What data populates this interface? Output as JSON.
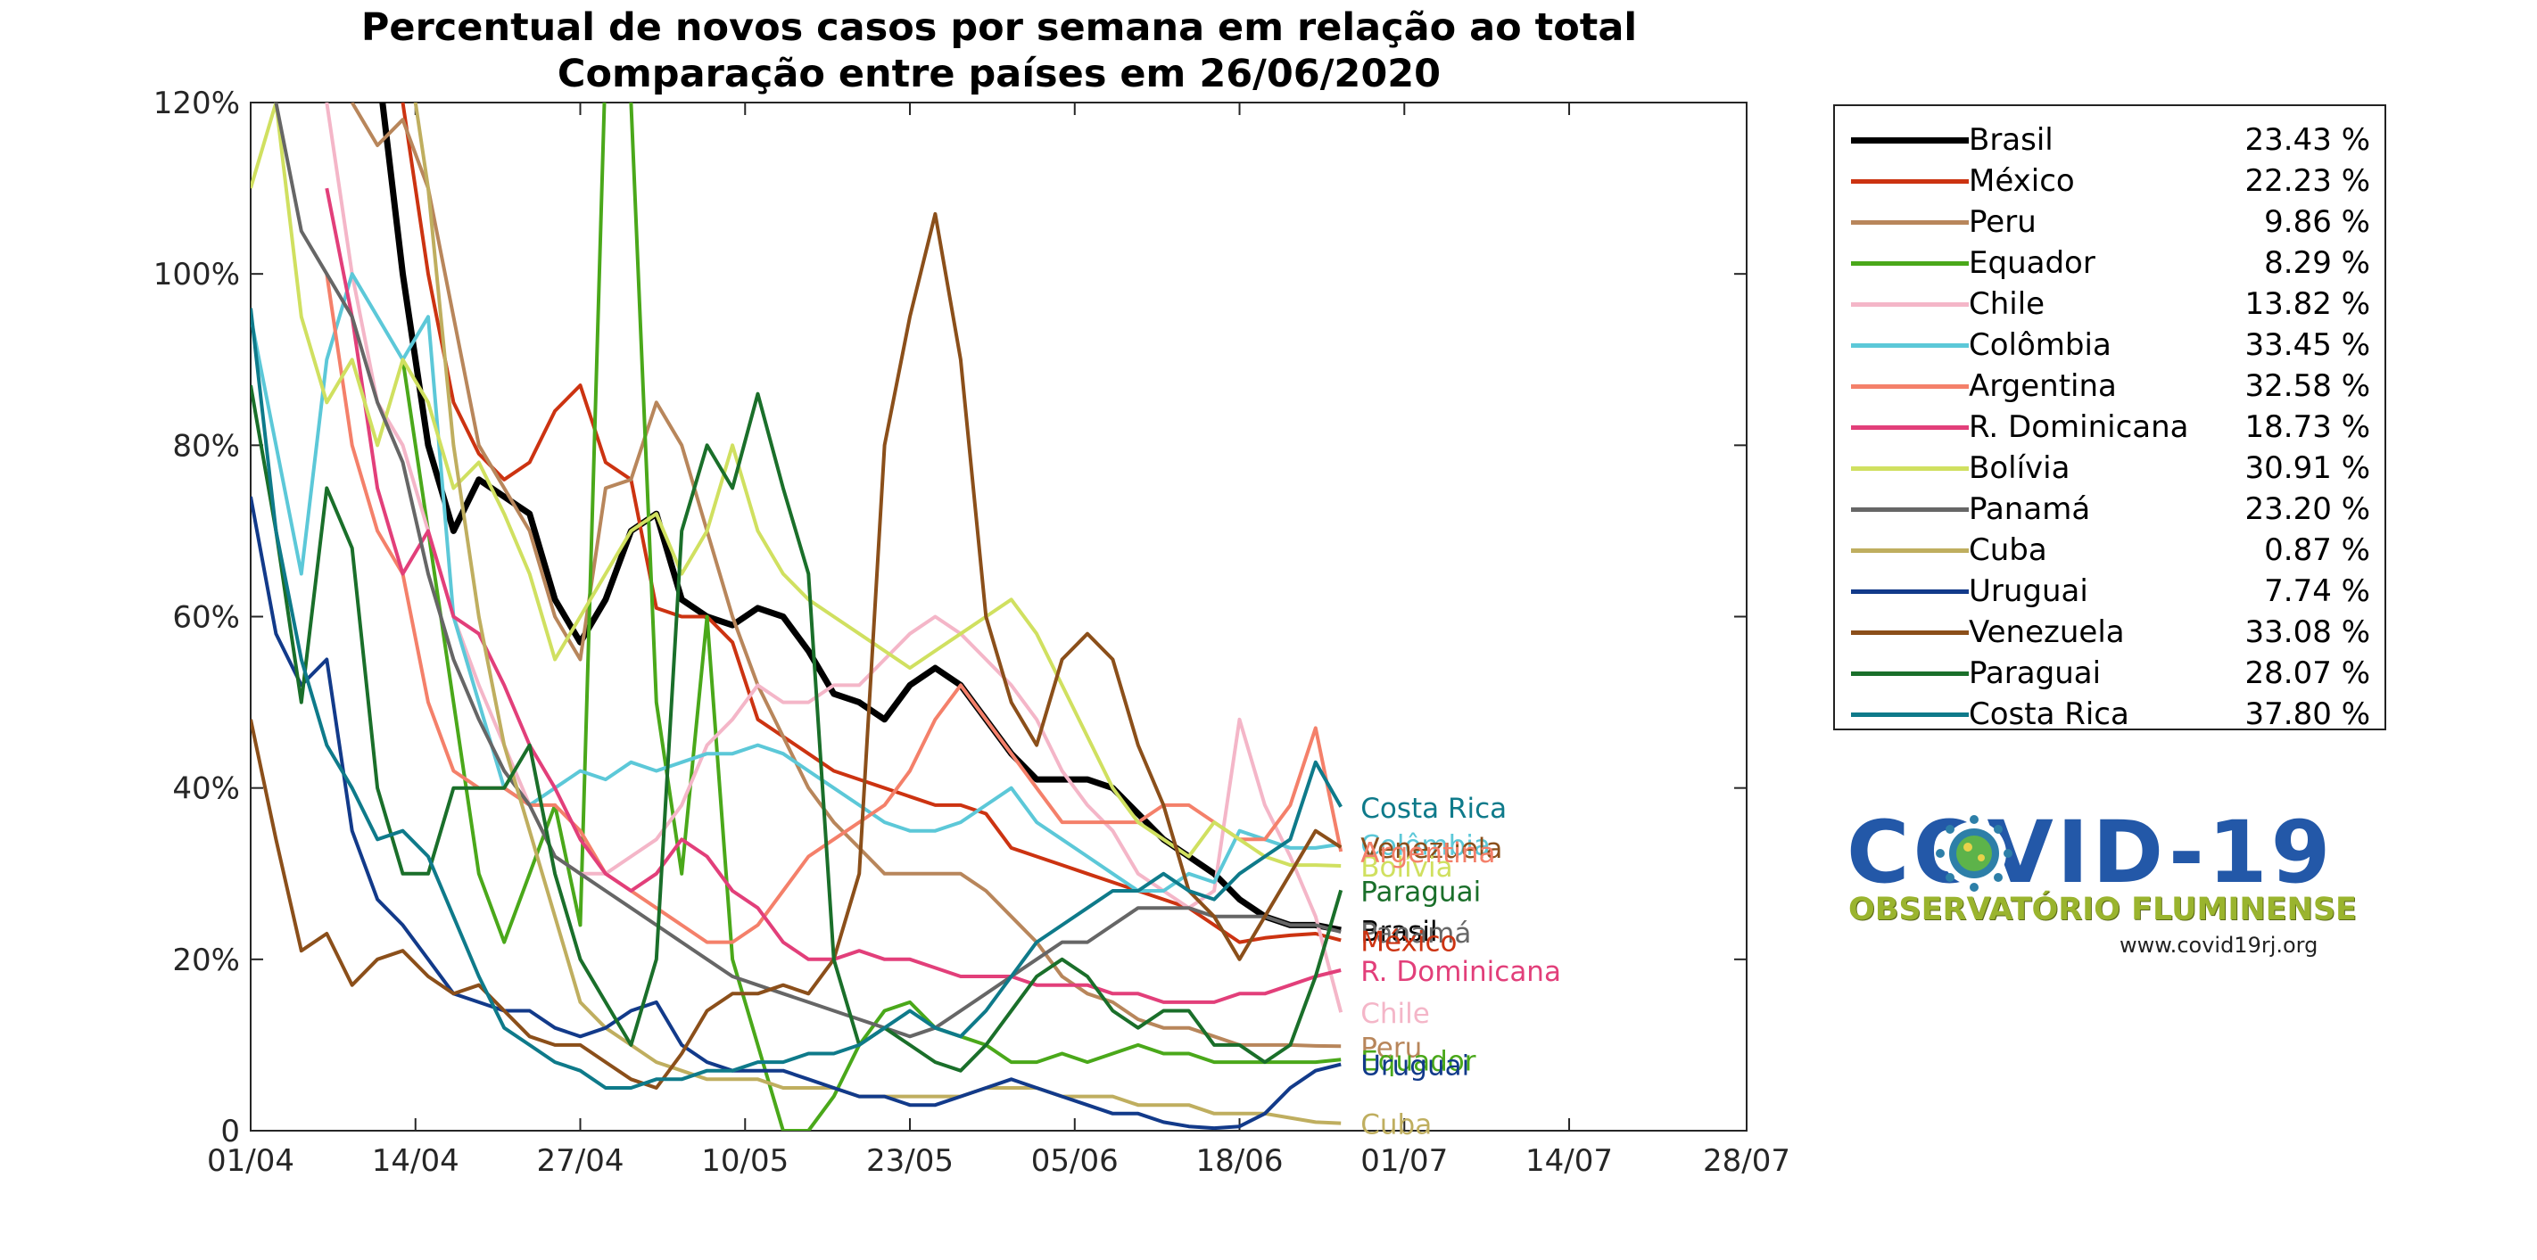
{
  "title_line1": "Percentual de novos casos por semana em relação ao total",
  "title_line2": "Comparação entre países em 26/06/2020",
  "logo": {
    "title": "COVID-19",
    "subtitle": "OBSERVATÓRIO FLUMINENSE",
    "url": "www.covid19rj.org",
    "icon": "coronavirus-icon"
  },
  "chart_data": {
    "type": "line",
    "title": "Percentual de novos casos por semana em relação ao total",
    "subtitle": "Comparação entre países em 26/06/2020",
    "xlabel": "",
    "ylabel": "",
    "x": [
      "01/04",
      "03/04",
      "05/04",
      "07/04",
      "09/04",
      "11/04",
      "13/04",
      "15/04",
      "17/04",
      "19/04",
      "21/04",
      "23/04",
      "25/04",
      "27/04",
      "29/04",
      "01/05",
      "03/05",
      "05/05",
      "07/05",
      "09/05",
      "11/05",
      "13/05",
      "15/05",
      "17/05",
      "19/05",
      "21/05",
      "23/05",
      "25/05",
      "27/05",
      "29/05",
      "31/05",
      "02/06",
      "04/06",
      "06/06",
      "08/06",
      "10/06",
      "12/06",
      "14/06",
      "16/06",
      "18/06",
      "20/06",
      "22/06",
      "24/06",
      "26/06"
    ],
    "x_ticks": [
      "01/04",
      "14/04",
      "27/04",
      "10/05",
      "23/05",
      "05/06",
      "18/06",
      "01/07",
      "14/07",
      "28/07"
    ],
    "x_range": [
      "01/04",
      "28/07"
    ],
    "y_ticks": [
      "0",
      "20%",
      "40%",
      "60%",
      "80%",
      "100%",
      "120%"
    ],
    "ylim": [
      0,
      120
    ],
    "y_unit": "%",
    "grid": false,
    "legend_position": "outside-right",
    "series": [
      {
        "name": "Brasil",
        "color": "#000000",
        "final": "23.43 %",
        "values": [
          null,
          null,
          null,
          null,
          null,
          125,
          100,
          80,
          70,
          76,
          74,
          72,
          62,
          57,
          62,
          70,
          72,
          62,
          60,
          59,
          61,
          60,
          56,
          51,
          50,
          48,
          52,
          54,
          52,
          48,
          44,
          41,
          41,
          41,
          40,
          37,
          34,
          32,
          30,
          27,
          25,
          24,
          24,
          23.43
        ]
      },
      {
        "name": "México",
        "color": "#cc3311",
        "final": "22.23 %",
        "values": [
          null,
          null,
          null,
          null,
          null,
          null,
          120,
          100,
          85,
          79,
          76,
          78,
          84,
          87,
          78,
          76,
          61,
          60,
          60,
          57,
          48,
          46,
          44,
          42,
          41,
          40,
          39,
          38,
          38,
          37,
          33,
          32,
          31,
          30,
          29,
          28,
          27,
          26,
          24,
          22,
          22.5,
          22.8,
          23,
          22.23
        ]
      },
      {
        "name": "Peru",
        "color": "#b8865b",
        "final": "9.86 %",
        "values": [
          null,
          null,
          null,
          null,
          120,
          115,
          118,
          110,
          95,
          80,
          75,
          70,
          60,
          55,
          75,
          76,
          85,
          80,
          70,
          60,
          52,
          46,
          40,
          36,
          33,
          30,
          30,
          30,
          30,
          28,
          25,
          22,
          18,
          16,
          15,
          13,
          12,
          12,
          11,
          10,
          10,
          10,
          9.9,
          9.86
        ]
      },
      {
        "name": "Equador",
        "color": "#4aa81a",
        "final": "8.29 %",
        "values": [
          null,
          null,
          null,
          null,
          null,
          null,
          90,
          70,
          50,
          30,
          22,
          30,
          38,
          24,
          125,
          120,
          50,
          30,
          60,
          20,
          10,
          0,
          0,
          4,
          10,
          14,
          15,
          12,
          11,
          10,
          8,
          8,
          9,
          8,
          9,
          10,
          9,
          9,
          8,
          8,
          8,
          8,
          8,
          8.29
        ]
      },
      {
        "name": "Chile",
        "color": "#f4b6c8",
        "final": "13.82 %",
        "values": [
          null,
          null,
          null,
          120,
          100,
          85,
          80,
          70,
          60,
          52,
          45,
          38,
          32,
          30,
          30,
          32,
          34,
          38,
          45,
          48,
          52,
          50,
          50,
          52,
          52,
          55,
          58,
          60,
          58,
          55,
          52,
          48,
          42,
          38,
          35,
          30,
          28,
          26,
          28,
          48,
          38,
          32,
          25,
          13.82
        ]
      },
      {
        "name": "Colômbia",
        "color": "#5cc8d8",
        "final": "33.45 %",
        "values": [
          95,
          80,
          65,
          90,
          100,
          95,
          90,
          95,
          60,
          50,
          40,
          38,
          40,
          42,
          41,
          43,
          42,
          43,
          44,
          44,
          45,
          44,
          42,
          40,
          38,
          36,
          35,
          35,
          36,
          38,
          40,
          36,
          34,
          32,
          30,
          28,
          28,
          30,
          29,
          35,
          34,
          33,
          33,
          33.45
        ]
      },
      {
        "name": "Argentina",
        "color": "#f4806a",
        "final": "32.58 %",
        "values": [
          null,
          null,
          null,
          100,
          80,
          70,
          65,
          50,
          42,
          40,
          40,
          38,
          38,
          35,
          30,
          28,
          26,
          24,
          22,
          22,
          24,
          28,
          32,
          34,
          36,
          38,
          42,
          48,
          52,
          48,
          44,
          40,
          36,
          36,
          36,
          36,
          38,
          38,
          36,
          34,
          34,
          38,
          47,
          32.58
        ]
      },
      {
        "name": "R. Dominicana",
        "color": "#e23f7a",
        "final": "18.73 %",
        "values": [
          null,
          null,
          null,
          110,
          95,
          75,
          65,
          70,
          60,
          58,
          52,
          45,
          40,
          34,
          30,
          28,
          30,
          34,
          32,
          28,
          26,
          22,
          20,
          20,
          21,
          20,
          20,
          19,
          18,
          18,
          18,
          17,
          17,
          17,
          16,
          16,
          15,
          15,
          15,
          16,
          16,
          17,
          18,
          18.73
        ]
      },
      {
        "name": "Bolívia",
        "color": "#d0e060",
        "final": "30.91 %",
        "values": [
          110,
          120,
          95,
          85,
          90,
          80,
          90,
          85,
          75,
          78,
          72,
          65,
          55,
          60,
          65,
          70,
          72,
          65,
          70,
          80,
          70,
          65,
          62,
          60,
          58,
          56,
          54,
          56,
          58,
          60,
          62,
          58,
          52,
          46,
          40,
          36,
          34,
          32,
          36,
          34,
          32,
          31,
          31,
          30.91
        ]
      },
      {
        "name": "Panamá",
        "color": "#666666",
        "final": "23.20 %",
        "values": [
          125,
          120,
          105,
          100,
          95,
          85,
          78,
          65,
          55,
          48,
          42,
          38,
          32,
          30,
          28,
          26,
          24,
          22,
          20,
          18,
          17,
          16,
          15,
          14,
          13,
          12,
          11,
          12,
          14,
          16,
          18,
          20,
          22,
          22,
          24,
          26,
          26,
          26,
          25,
          25,
          25,
          24,
          24,
          23.2
        ]
      },
      {
        "name": "Cuba",
        "color": "#bfae5f",
        "final": "0.87 %",
        "values": [
          null,
          null,
          null,
          null,
          null,
          null,
          130,
          110,
          80,
          60,
          45,
          35,
          25,
          15,
          12,
          10,
          8,
          7,
          6,
          6,
          6,
          5,
          5,
          5,
          4,
          4,
          4,
          4,
          4,
          5,
          5,
          5,
          4,
          4,
          4,
          3,
          3,
          3,
          2,
          2,
          2,
          1.5,
          1,
          0.87
        ]
      },
      {
        "name": "Uruguai",
        "color": "#123a8a",
        "final": "7.74 %",
        "values": [
          74,
          58,
          52,
          55,
          35,
          27,
          24,
          20,
          16,
          15,
          14,
          14,
          12,
          11,
          12,
          14,
          15,
          10,
          8,
          7,
          7,
          7,
          6,
          5,
          4,
          4,
          3,
          3,
          4,
          5,
          6,
          5,
          4,
          3,
          2,
          2,
          1,
          0.5,
          0.3,
          0.5,
          2,
          5,
          7,
          7.74
        ]
      },
      {
        "name": "Venezuela",
        "color": "#8b4f1a",
        "final": "33.08 %",
        "values": [
          48,
          34,
          21,
          23,
          17,
          20,
          21,
          18,
          16,
          17,
          14,
          11,
          10,
          10,
          8,
          6,
          5,
          9,
          14,
          16,
          16,
          17,
          16,
          20,
          30,
          80,
          95,
          107,
          90,
          60,
          50,
          45,
          55,
          58,
          55,
          45,
          38,
          28,
          25,
          20,
          25,
          30,
          35,
          33.08
        ]
      },
      {
        "name": "Paraguai",
        "color": "#1a6f2a",
        "final": "28.07 %",
        "values": [
          87,
          70,
          50,
          75,
          68,
          40,
          30,
          30,
          40,
          40,
          40,
          45,
          30,
          20,
          15,
          10,
          20,
          70,
          80,
          75,
          86,
          75,
          65,
          20,
          10,
          12,
          10,
          8,
          7,
          10,
          14,
          18,
          20,
          18,
          14,
          12,
          14,
          14,
          10,
          10,
          8,
          10,
          18,
          28.07
        ]
      },
      {
        "name": "Costa Rica",
        "color": "#0e7a8a",
        "final": "37.80 %",
        "values": [
          96,
          70,
          55,
          45,
          40,
          34,
          35,
          32,
          25,
          18,
          12,
          10,
          8,
          7,
          5,
          5,
          6,
          6,
          7,
          7,
          8,
          8,
          9,
          9,
          10,
          12,
          14,
          12,
          11,
          14,
          18,
          22,
          24,
          26,
          28,
          28,
          30,
          28,
          27,
          30,
          32,
          34,
          43,
          37.8
        ]
      }
    ],
    "end_labels": [
      "Costa Rica",
      "Colômbia",
      "Venezuela",
      "Bolívia",
      "Argentina",
      "Paraguai",
      "Brasil",
      "Panamá",
      "México",
      "R. Dominicana",
      "Chile",
      "Peru",
      "Equador",
      "Uruguai",
      "Cuba"
    ]
  }
}
